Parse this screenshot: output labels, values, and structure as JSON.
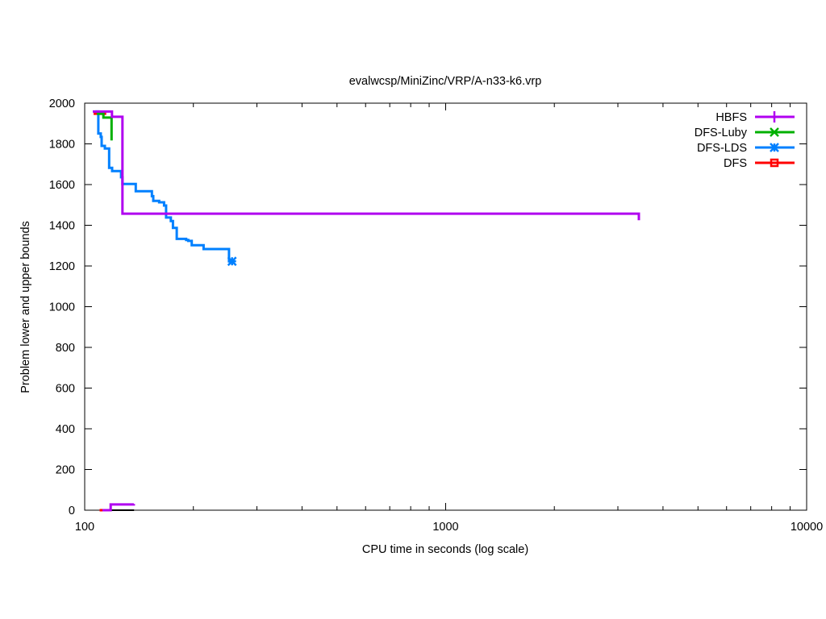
{
  "chart_data": {
    "type": "line",
    "title": "evalwcsp/MiniZinc/VRP/A-n33-k6.vrp",
    "xlabel": "CPU time in seconds (log scale)",
    "ylabel": "Problem lower and upper bounds",
    "xscale": "log",
    "xlim": [
      100,
      10000
    ],
    "ylim": [
      0,
      2000
    ],
    "xticks": [
      100,
      1000,
      10000
    ],
    "xtick_labels": [
      "100",
      "1000",
      "10000"
    ],
    "yticks": [
      0,
      200,
      400,
      600,
      800,
      1000,
      1200,
      1400,
      1600,
      1800,
      2000
    ],
    "ytick_labels": [
      "0",
      "200",
      "400",
      "600",
      "800",
      "1000",
      "1200",
      "1400",
      "1600",
      "1800",
      "2000"
    ],
    "grid": false,
    "legend_position": "top-right",
    "series": [
      {
        "name": "HBFS",
        "color": "#b000f0",
        "marker": "plus",
        "points": [
          [
            105.3,
            1959
          ],
          [
            119,
            1959
          ],
          [
            119,
            1933
          ],
          [
            127.2,
            1933
          ],
          [
            127.2,
            1457
          ],
          [
            3430,
            1457
          ],
          [
            3430,
            1425
          ]
        ],
        "lower": [
          [
            112,
            0
          ],
          [
            118,
            0
          ],
          [
            118,
            28
          ],
          [
            136.8,
            28
          ],
          [
            136.8,
            31
          ]
        ]
      },
      {
        "name": "DFS-Luby",
        "color": "#00b000",
        "marker": "x",
        "points": [
          [
            108,
            1948
          ],
          [
            112.7,
            1948
          ],
          [
            112.7,
            1929
          ],
          [
            118.7,
            1929
          ],
          [
            118.7,
            1817
          ]
        ]
      },
      {
        "name": "DFS-LDS",
        "color": "#0080ff",
        "marker": "star",
        "points": [
          [
            107,
            1959
          ],
          [
            109.1,
            1959
          ],
          [
            109.1,
            1851
          ],
          [
            110.8,
            1851
          ],
          [
            110.8,
            1834
          ],
          [
            111.4,
            1834
          ],
          [
            111.4,
            1790
          ],
          [
            113.7,
            1790
          ],
          [
            113.7,
            1777
          ],
          [
            116.9,
            1777
          ],
          [
            116.9,
            1682
          ],
          [
            119.1,
            1682
          ],
          [
            119.1,
            1666
          ],
          [
            126.1,
            1666
          ],
          [
            126.1,
            1636
          ],
          [
            127.2,
            1636
          ],
          [
            127.2,
            1603
          ],
          [
            138.5,
            1603
          ],
          [
            138.5,
            1567
          ],
          [
            153.5,
            1567
          ],
          [
            153.5,
            1543
          ],
          [
            154.9,
            1543
          ],
          [
            154.9,
            1520
          ],
          [
            160.8,
            1520
          ],
          [
            160.8,
            1513
          ],
          [
            165.9,
            1513
          ],
          [
            165.9,
            1497
          ],
          [
            168.1,
            1497
          ],
          [
            168.1,
            1438
          ],
          [
            173.2,
            1438
          ],
          [
            173.2,
            1421
          ],
          [
            175.6,
            1421
          ],
          [
            175.6,
            1387
          ],
          [
            179.9,
            1387
          ],
          [
            179.9,
            1333
          ],
          [
            191,
            1333
          ],
          [
            191,
            1328
          ],
          [
            193.6,
            1328
          ],
          [
            193.6,
            1323
          ],
          [
            197.9,
            1323
          ],
          [
            197.9,
            1302
          ],
          [
            213.5,
            1302
          ],
          [
            213.5,
            1283
          ],
          [
            251,
            1283
          ],
          [
            251,
            1223
          ],
          [
            256,
            1223
          ]
        ],
        "end_marker": [
          256,
          1223
        ]
      },
      {
        "name": "DFS",
        "color": "#ff0000",
        "marker": "square",
        "points": [
          [
            105.8,
            1948
          ],
          [
            114.7,
            1948
          ]
        ],
        "lower": [
          [
            110,
            0
          ],
          [
            113,
            0
          ]
        ]
      }
    ],
    "extra_lower": {
      "color": "#000000",
      "points": [
        [
          110,
          0
        ],
        [
          137,
          0
        ]
      ]
    }
  }
}
